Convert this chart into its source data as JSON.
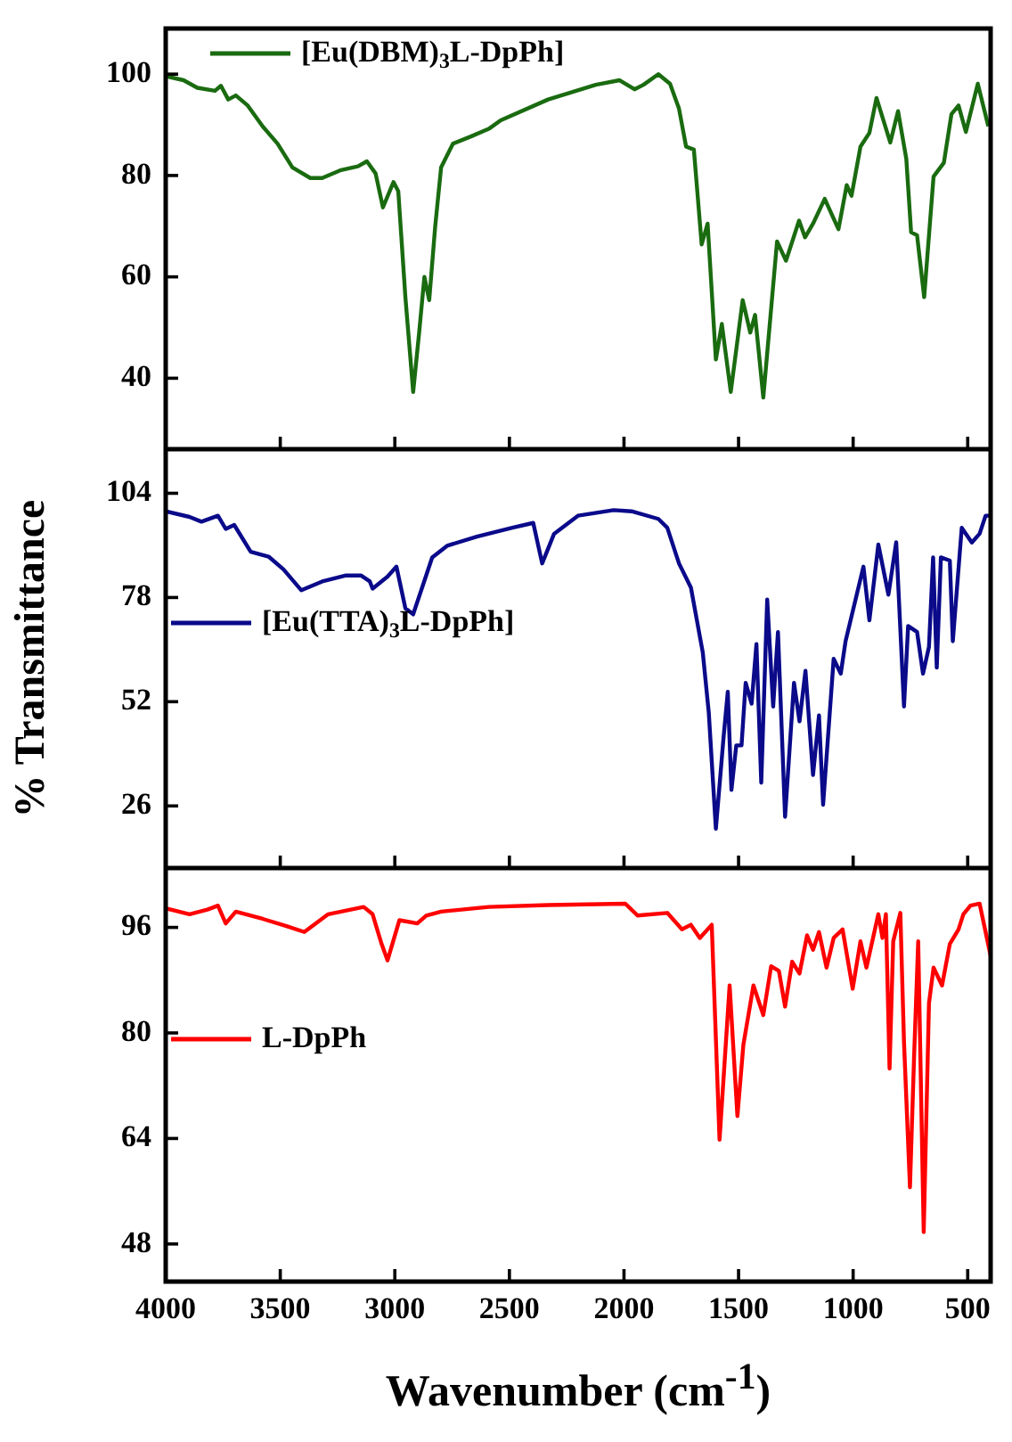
{
  "chart_data": [
    {
      "type": "line",
      "xlim": [
        4000,
        400
      ],
      "xticks": [
        4000,
        3500,
        3000,
        2500,
        2000,
        1500,
        1000,
        500
      ],
      "ylim": [
        26,
        109
      ],
      "yticks": [
        40,
        60,
        80,
        100
      ],
      "tick_labels": "y",
      "legend": "top left",
      "series": [
        {
          "name": "[Eu(DBM)$_{3}$L-DpPh]",
          "color": "#1a6b10",
          "x": [
            4000,
            3922,
            3862,
            3785,
            3759,
            3727,
            3694,
            3642,
            3577,
            3512,
            3447,
            3369,
            3317,
            3239,
            3161,
            3122,
            3084,
            3052,
            3006,
            2985,
            2954,
            2920,
            2894,
            2871,
            2850,
            2824,
            2798,
            2746,
            2668,
            2590,
            2538,
            2331,
            2123,
            2019,
            1954,
            1915,
            1850,
            1799,
            1760,
            1729,
            1695,
            1661,
            1635,
            1599,
            1573,
            1534,
            1482,
            1449,
            1428,
            1392,
            1332,
            1293,
            1236,
            1210,
            1175,
            1124,
            1064,
            1028,
            1007,
            968,
            929,
            898,
            838,
            804,
            768,
            747,
            721,
            690,
            649,
            604,
            571,
            540,
            508,
            456,
            410
          ],
          "values": [
            99.6,
            98.8,
            97.3,
            96.7,
            97.7,
            95.0,
            95.8,
            93.8,
            89.7,
            86.3,
            81.6,
            79.5,
            79.5,
            81.0,
            81.8,
            82.8,
            80.4,
            73.7,
            78.7,
            76.9,
            56.0,
            37.3,
            49.0,
            60.0,
            55.4,
            69.9,
            81.6,
            86.3,
            87.7,
            89.2,
            90.9,
            95.0,
            97.9,
            98.8,
            97.0,
            97.9,
            100.0,
            98.1,
            93.2,
            85.7,
            85.1,
            66.4,
            70.5,
            43.7,
            50.7,
            37.3,
            55.4,
            49.0,
            52.5,
            36.2,
            67.0,
            63.2,
            71.1,
            67.8,
            70.5,
            75.4,
            69.4,
            78.1,
            76.0,
            85.7,
            88.4,
            95.3,
            86.5,
            92.7,
            83.3,
            68.8,
            68.2,
            56.0,
            79.8,
            82.5,
            92.1,
            93.8,
            88.6,
            98.1,
            89.7
          ]
        }
      ]
    },
    {
      "type": "line",
      "xlim": [
        4000,
        400
      ],
      "xticks": [
        4000,
        3500,
        3000,
        2500,
        2000,
        1500,
        1000,
        500
      ],
      "ylim": [
        10.5,
        115
      ],
      "yticks": [
        26,
        52,
        78,
        104
      ],
      "tick_labels": "y",
      "legend": "left",
      "ylabel": "% Transmittance",
      "series": [
        {
          "name": "[Eu(TTA)$_{3}$L-DpPh]",
          "color": "#0a0a8a",
          "x": [
            4000,
            3896,
            3844,
            3772,
            3738,
            3701,
            3629,
            3551,
            3486,
            3408,
            3317,
            3213,
            3148,
            3109,
            3097,
            3032,
            2993,
            2954,
            2920,
            2876,
            2837,
            2772,
            2642,
            2487,
            2396,
            2357,
            2305,
            2201,
            2045,
            1967,
            1850,
            1811,
            1760,
            1708,
            1656,
            1630,
            1599,
            1565,
            1547,
            1531,
            1510,
            1487,
            1469,
            1443,
            1422,
            1401,
            1375,
            1349,
            1328,
            1297,
            1258,
            1234,
            1208,
            1175,
            1149,
            1131,
            1085,
            1054,
            1033,
            955,
            929,
            890,
            846,
            812,
            778,
            760,
            721,
            695,
            669,
            651,
            635,
            617,
            578,
            565,
            526,
            482,
            448,
            422,
            400
          ],
          "values": [
            99.5,
            98.1,
            96.9,
            98.4,
            95.1,
            96.1,
            89.4,
            88.2,
            85.0,
            79.8,
            82.0,
            83.5,
            83.5,
            82.0,
            80.2,
            83.2,
            85.7,
            75.3,
            73.8,
            81.3,
            88.0,
            90.9,
            93.2,
            95.4,
            96.6,
            86.5,
            93.9,
            98.4,
            99.8,
            99.5,
            97.6,
            95.4,
            86.5,
            80.5,
            64.2,
            49.3,
            20.3,
            43.4,
            54.5,
            30.0,
            41.1,
            41.1,
            56.7,
            51.5,
            66.4,
            31.8,
            77.5,
            50.8,
            69.4,
            23.3,
            56.7,
            47.1,
            59.7,
            33.7,
            48.6,
            26.3,
            62.7,
            59.0,
            67.1,
            85.7,
            72.3,
            91.2,
            78.7,
            91.8,
            50.8,
            70.9,
            69.4,
            59.0,
            65.7,
            88.0,
            60.5,
            88.0,
            87.2,
            67.1,
            95.4,
            91.7,
            93.9,
            98.4,
            98.4
          ]
        }
      ]
    },
    {
      "type": "line",
      "xlim": [
        4000,
        400
      ],
      "xticks": [
        4000,
        3500,
        3000,
        2500,
        2000,
        1500,
        1000,
        500
      ],
      "ylim": [
        42.3,
        105
      ],
      "yticks": [
        48,
        64,
        80,
        96
      ],
      "legend": "left",
      "xlabel": "Wavenumber (cm$^{-1}$)",
      "series": [
        {
          "name": "L-DpPh",
          "color": "#ff0000",
          "x": [
            4000,
            3896,
            3818,
            3772,
            3738,
            3694,
            3577,
            3473,
            3395,
            3291,
            3136,
            3097,
            3058,
            3032,
            2980,
            2902,
            2863,
            2798,
            2590,
            2331,
            1994,
            1941,
            1811,
            1747,
            1708,
            1669,
            1617,
            1583,
            1539,
            1505,
            1479,
            1435,
            1392,
            1358,
            1324,
            1297,
            1266,
            1234,
            1201,
            1175,
            1149,
            1116,
            1085,
            1046,
            1002,
            968,
            942,
            890,
            872,
            857,
            841,
            825,
            794,
            778,
            752,
            734,
            716,
            692,
            669,
            649,
            612,
            578,
            540,
            519,
            488,
            448,
            400
          ],
          "values": [
            98.9,
            98.0,
            98.7,
            99.3,
            96.6,
            98.4,
            97.3,
            96.2,
            95.3,
            98.0,
            99.1,
            98.0,
            93.5,
            91.0,
            97.1,
            96.6,
            97.8,
            98.4,
            99.1,
            99.4,
            99.6,
            97.8,
            98.2,
            95.7,
            96.4,
            94.4,
            96.4,
            63.8,
            87.2,
            67.4,
            78.2,
            87.2,
            82.7,
            90.1,
            89.4,
            84.0,
            90.8,
            89.0,
            94.8,
            92.6,
            95.3,
            89.9,
            94.4,
            95.7,
            86.7,
            93.9,
            89.9,
            98.0,
            94.4,
            98.0,
            74.6,
            93.9,
            98.2,
            78.6,
            56.6,
            76.4,
            93.9,
            49.8,
            84.5,
            89.9,
            87.2,
            93.5,
            95.7,
            98.0,
            99.3,
            99.6,
            91.7
          ]
        }
      ]
    }
  ]
}
